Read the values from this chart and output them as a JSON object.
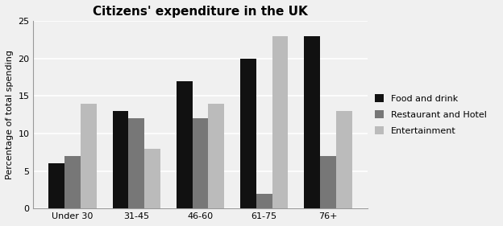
{
  "title": "Citizens' expenditure in the UK",
  "ylabel": "Percentage of total spending",
  "categories": [
    "Under 30",
    "31-45",
    "46-60",
    "61-75",
    "76+"
  ],
  "series": [
    {
      "label": "Food and drink",
      "color": "#111111",
      "values": [
        6,
        13,
        17,
        20,
        23
      ]
    },
    {
      "label": "Restaurant and Hotel",
      "color": "#777777",
      "values": [
        7,
        12,
        12,
        2,
        7
      ]
    },
    {
      "label": "Entertainment",
      "color": "#bbbbbb",
      "values": [
        14,
        8,
        14,
        23,
        13
      ]
    }
  ],
  "ylim": [
    0,
    25
  ],
  "yticks": [
    0,
    5,
    10,
    15,
    20,
    25
  ],
  "bar_width": 0.25,
  "background_color": "#f0f0f0",
  "plot_bg_color": "#f0f0f0",
  "grid_color": "#ffffff",
  "title_fontsize": 11,
  "axis_label_fontsize": 8,
  "tick_fontsize": 8,
  "legend_fontsize": 8
}
